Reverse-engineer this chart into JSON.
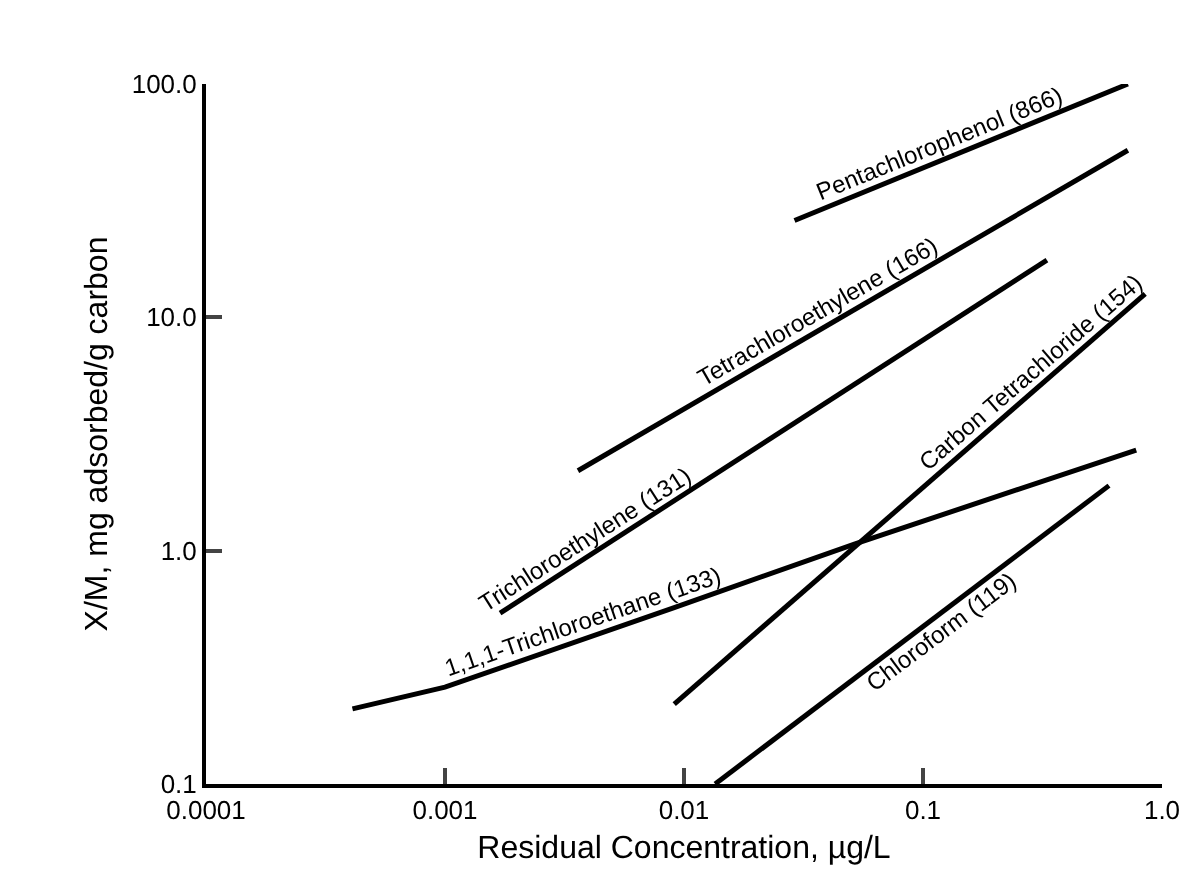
{
  "chart_data": {
    "type": "line",
    "xlabel": "Residual Concentration, µg/L",
    "ylabel": "X/M, mg adsorbed/g carbon",
    "log": "xy",
    "legend": false,
    "marker": "none",
    "line_style": "solid",
    "xlim": [
      0.0001,
      1.0
    ],
    "ylim": [
      0.1,
      100.0
    ],
    "xticks": [
      {
        "value": 0.0001,
        "label": "0.0001"
      },
      {
        "value": 0.001,
        "label": "0.001"
      },
      {
        "value": 0.01,
        "label": "0.01"
      },
      {
        "value": 0.1,
        "label": "0.1"
      },
      {
        "value": 1.0,
        "label": "1.0"
      }
    ],
    "yticks": [
      {
        "value": 0.1,
        "label": "0.1"
      },
      {
        "value": 1.0,
        "label": "1.0"
      },
      {
        "value": 10.0,
        "label": "10.0"
      },
      {
        "value": 100.0,
        "label": "100.0"
      }
    ],
    "series": [
      {
        "name": "Pentachlorophenol (866)",
        "color": "#000000",
        "x": [
          0.029,
          0.72
        ],
        "values": [
          26,
          100
        ]
      },
      {
        "name": "Tetrachloroethylene (166)",
        "color": "#000000",
        "x": [
          0.0036,
          0.72
        ],
        "values": [
          2.2,
          52
        ]
      },
      {
        "name": "Trichloroethylene (131)",
        "color": "#000000",
        "x": [
          0.0017,
          0.33
        ],
        "values": [
          0.54,
          17.6
        ]
      },
      {
        "name": "1,1,1-Trichloroethane (133)",
        "color": "#000000",
        "x": [
          0.00041,
          0.001,
          0.0091,
          0.052,
          0.78
        ],
        "values": [
          0.21,
          0.26,
          0.57,
          1.07,
          2.7
        ]
      },
      {
        "name": "Carbon Tetrachloride (154)",
        "color": "#000000",
        "x": [
          0.0091,
          0.85
        ],
        "values": [
          0.22,
          12.6
        ]
      },
      {
        "name": "Chloroform (119)",
        "color": "#000000",
        "x": [
          0.0135,
          0.6
        ],
        "values": [
          0.1,
          1.9
        ]
      }
    ]
  }
}
